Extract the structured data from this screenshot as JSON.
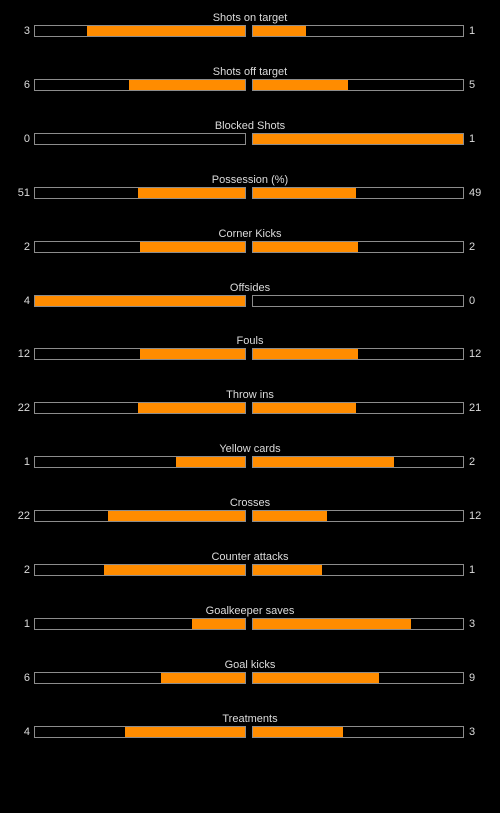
{
  "colors": {
    "background": "#000000",
    "bar_fill": "#ff8c00",
    "bar_border": "#8c8c8c",
    "text": "#dcdcdc"
  },
  "stats": [
    {
      "label": "Shots on target",
      "home": "3",
      "away": "1",
      "home_ratio": 0.75,
      "away_ratio": 0.25
    },
    {
      "label": "Shots off target",
      "home": "6",
      "away": "5",
      "home_ratio": 0.55,
      "away_ratio": 0.45
    },
    {
      "label": "Blocked Shots",
      "home": "0",
      "away": "1",
      "home_ratio": 0.0,
      "away_ratio": 1.0
    },
    {
      "label": "Possession (%)",
      "home": "51",
      "away": "49",
      "home_ratio": 0.51,
      "away_ratio": 0.49
    },
    {
      "label": "Corner Kicks",
      "home": "2",
      "away": "2",
      "home_ratio": 0.5,
      "away_ratio": 0.5
    },
    {
      "label": "Offsides",
      "home": "4",
      "away": "0",
      "home_ratio": 1.0,
      "away_ratio": 0.0
    },
    {
      "label": "Fouls",
      "home": "12",
      "away": "12",
      "home_ratio": 0.5,
      "away_ratio": 0.5
    },
    {
      "label": "Throw ins",
      "home": "22",
      "away": "21",
      "home_ratio": 0.51,
      "away_ratio": 0.49
    },
    {
      "label": "Yellow cards",
      "home": "1",
      "away": "2",
      "home_ratio": 0.33,
      "away_ratio": 0.67
    },
    {
      "label": "Crosses",
      "home": "22",
      "away": "12",
      "home_ratio": 0.65,
      "away_ratio": 0.35
    },
    {
      "label": "Counter attacks",
      "home": "2",
      "away": "1",
      "home_ratio": 0.67,
      "away_ratio": 0.33
    },
    {
      "label": "Goalkeeper saves",
      "home": "1",
      "away": "3",
      "home_ratio": 0.25,
      "away_ratio": 0.75
    },
    {
      "label": "Goal kicks",
      "home": "6",
      "away": "9",
      "home_ratio": 0.4,
      "away_ratio": 0.6
    },
    {
      "label": "Treatments",
      "home": "4",
      "away": "3",
      "home_ratio": 0.57,
      "away_ratio": 0.43
    }
  ]
}
